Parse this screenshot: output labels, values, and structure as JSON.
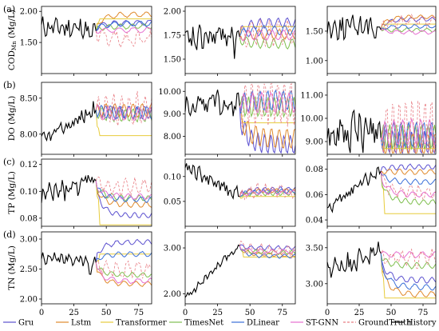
{
  "chart_data": {
    "type": "line",
    "legend_position": "bottom",
    "grid": false,
    "legend": [
      {
        "name": "Gru",
        "color": "#5a4fcf",
        "dash": false
      },
      {
        "name": "Lstm",
        "color": "#e08a2c",
        "dash": false
      },
      {
        "name": "Transformer",
        "color": "#e7cc3c",
        "dash": false
      },
      {
        "name": "TimesNet",
        "color": "#7fbf4f",
        "dash": false
      },
      {
        "name": "DLinear",
        "color": "#3a6fd8",
        "dash": false
      },
      {
        "name": "ST-GNN",
        "color": "#e56fd0",
        "dash": false
      },
      {
        "name": "GroundTruth",
        "color": "#e87d84",
        "dash": true
      },
      {
        "name": "History",
        "color": "#000000",
        "dash": false
      }
    ],
    "x_ticks": [
      "0",
      "25",
      "50",
      "75"
    ],
    "xlim": [
      0,
      85
    ],
    "rows": [
      {
        "label": "(a)",
        "ylabel_main": "COD",
        "ylabel_sub": "Mn",
        "ylabel_unit": " (Mg/L)",
        "panels": [
          {
            "ylim": [
              1.0,
              2.08
            ],
            "yticks": [
              1.5,
              2.0
            ],
            "ytick_labels": [
              "1.50",
              "2.00"
            ],
            "hist_start": 1.75,
            "hist_end": 1.72,
            "volatility": 0.13,
            "dip": 0.6,
            "levels": [
              1.82,
              1.95,
              1.88,
              1.76,
              1.8,
              1.7,
              1.55
            ],
            "amp": 0.04,
            "period": 9
          },
          {
            "ylim": [
              1.35,
              2.05
            ],
            "yticks": [
              1.5,
              1.75,
              2.0
            ],
            "ytick_labels": [
              "1.50",
              "1.75",
              "2.00"
            ],
            "hist_start": 1.68,
            "hist_end": 1.78,
            "volatility": 0.11,
            "dip": 0.55,
            "levels": [
              1.88,
              1.76,
              1.84,
              1.66,
              1.8,
              1.75,
              1.77
            ],
            "amp": 0.05,
            "period": 7
          },
          {
            "ylim": [
              0.78,
              1.92
            ],
            "yticks": [
              1.0,
              1.5
            ],
            "ytick_labels": [
              "1.00",
              "1.50"
            ],
            "hist_start": 1.55,
            "hist_end": 1.62,
            "volatility": 0.16,
            "dip": 0.3,
            "levels": [
              1.7,
              1.74,
              1.62,
              1.52,
              1.58,
              1.48,
              1.66
            ],
            "amp": 0.03,
            "period": 8
          }
        ]
      },
      {
        "label": "(b)",
        "ylabel_main": "DO",
        "ylabel_sub": "",
        "ylabel_unit": " (Mg/L)",
        "panels": [
          {
            "ylim": [
              7.72,
              8.72
            ],
            "yticks": [
              8.0,
              8.5
            ],
            "ytick_labels": [
              "8.00",
              "8.50"
            ],
            "hist_start": 7.9,
            "hist_end": 8.35,
            "volatility": 0.09,
            "dip": 0.0,
            "levels": [
              8.3,
              8.33,
              7.98,
              8.26,
              8.3,
              8.28,
              8.35
            ],
            "amp": 0.09,
            "period": 6
          },
          {
            "ylim": [
              7.2,
              10.4
            ],
            "yticks": [
              8.0,
              9.0,
              10.0
            ],
            "ytick_labels": [
              "8.00",
              "9.00",
              "10.00"
            ],
            "hist_start": 9.4,
            "hist_end": 9.5,
            "volatility": 0.45,
            "dip": 0.0,
            "levels": [
              7.6,
              7.9,
              8.6,
              9.3,
              9.6,
              9.5,
              9.6
            ],
            "amp": 0.45,
            "period": 5
          },
          {
            "ylim": [
              8.45,
              11.55
            ],
            "yticks": [
              9.0,
              10.0,
              11.0
            ],
            "ytick_labels": [
              "9.00",
              "10.00",
              "11.00"
            ],
            "hist_start": 9.2,
            "hist_end": 9.5,
            "volatility": 0.7,
            "dip": 0.0,
            "levels": [
              8.9,
              8.8,
              8.7,
              9.2,
              9.3,
              9.4,
              9.6
            ],
            "amp": 0.55,
            "period": 5
          }
        ]
      },
      {
        "label": "(c)",
        "ylabel_main": "TP",
        "ylabel_sub": "",
        "ylabel_unit": " (Mg/L)",
        "panels": [
          {
            "ylim": [
              0.074,
              0.124
            ],
            "yticks": [
              0.08,
              0.1,
              0.12
            ],
            "ytick_labels": [
              "0.08",
              "0.10",
              "0.12"
            ],
            "hist_start": 0.096,
            "hist_end": 0.108,
            "volatility": 0.006,
            "dip": 0.0,
            "levels": [
              0.082,
              0.09,
              0.075,
              0.095,
              0.094,
              0.096,
              0.103
            ],
            "amp": 0.002,
            "period": 7
          },
          {
            "ylim": [
              0.0,
              0.135
            ],
            "yticks": [
              0.05,
              0.1
            ],
            "ytick_labels": [
              "0.05",
              "0.10"
            ],
            "hist_start": 0.12,
            "hist_end": 0.062,
            "volatility": 0.012,
            "dip": 0.0,
            "levels": [
              0.075,
              0.072,
              0.06,
              0.066,
              0.07,
              0.068,
              0.072
            ],
            "amp": 0.004,
            "period": 6
          },
          {
            "ylim": [
              0.035,
              0.088
            ],
            "yticks": [
              0.04,
              0.06,
              0.08
            ],
            "ytick_labels": [
              "0.04",
              "0.06",
              "0.08"
            ],
            "hist_start": 0.048,
            "hist_end": 0.08,
            "volatility": 0.004,
            "dip": 0.0,
            "levels": [
              0.082,
              0.078,
              0.045,
              0.054,
              0.07,
              0.06,
              0.062
            ],
            "amp": 0.002,
            "period": 7
          }
        ]
      },
      {
        "label": "(d)",
        "ylabel_main": "TN",
        "ylabel_sub": "",
        "ylabel_unit": " (Mg/L)",
        "panels": [
          {
            "ylim": [
              1.92,
              3.12
            ],
            "yticks": [
              2.0,
              2.5,
              3.0
            ],
            "ytick_labels": [
              "2.00",
              "2.50",
              "3.00"
            ],
            "hist_start": 2.7,
            "hist_end": 2.6,
            "volatility": 0.1,
            "dip": 0.4,
            "levels": [
              2.95,
              2.25,
              2.75,
              2.4,
              2.75,
              2.3,
              2.5
            ],
            "amp": 0.04,
            "period": 8
          },
          {
            "ylim": [
              1.78,
              3.35
            ],
            "yticks": [
              2.0,
              3.0
            ],
            "ytick_labels": [
              "2.00",
              "3.00"
            ],
            "hist_start": 1.9,
            "hist_end": 3.05,
            "volatility": 0.07,
            "dip": 0.0,
            "levels": [
              3.0,
              2.85,
              2.8,
              2.9,
              2.82,
              2.92,
              2.95
            ],
            "amp": 0.04,
            "period": 7
          },
          {
            "ylim": [
              2.72,
              3.72
            ],
            "yticks": [
              3.0,
              3.5
            ],
            "ytick_labels": [
              "3.00",
              "3.50"
            ],
            "hist_start": 3.2,
            "hist_end": 3.45,
            "volatility": 0.12,
            "dip": 0.0,
            "levels": [
              3.05,
              2.85,
              2.8,
              3.25,
              2.95,
              3.4,
              3.35
            ],
            "amp": 0.04,
            "period": 8
          }
        ]
      }
    ]
  }
}
